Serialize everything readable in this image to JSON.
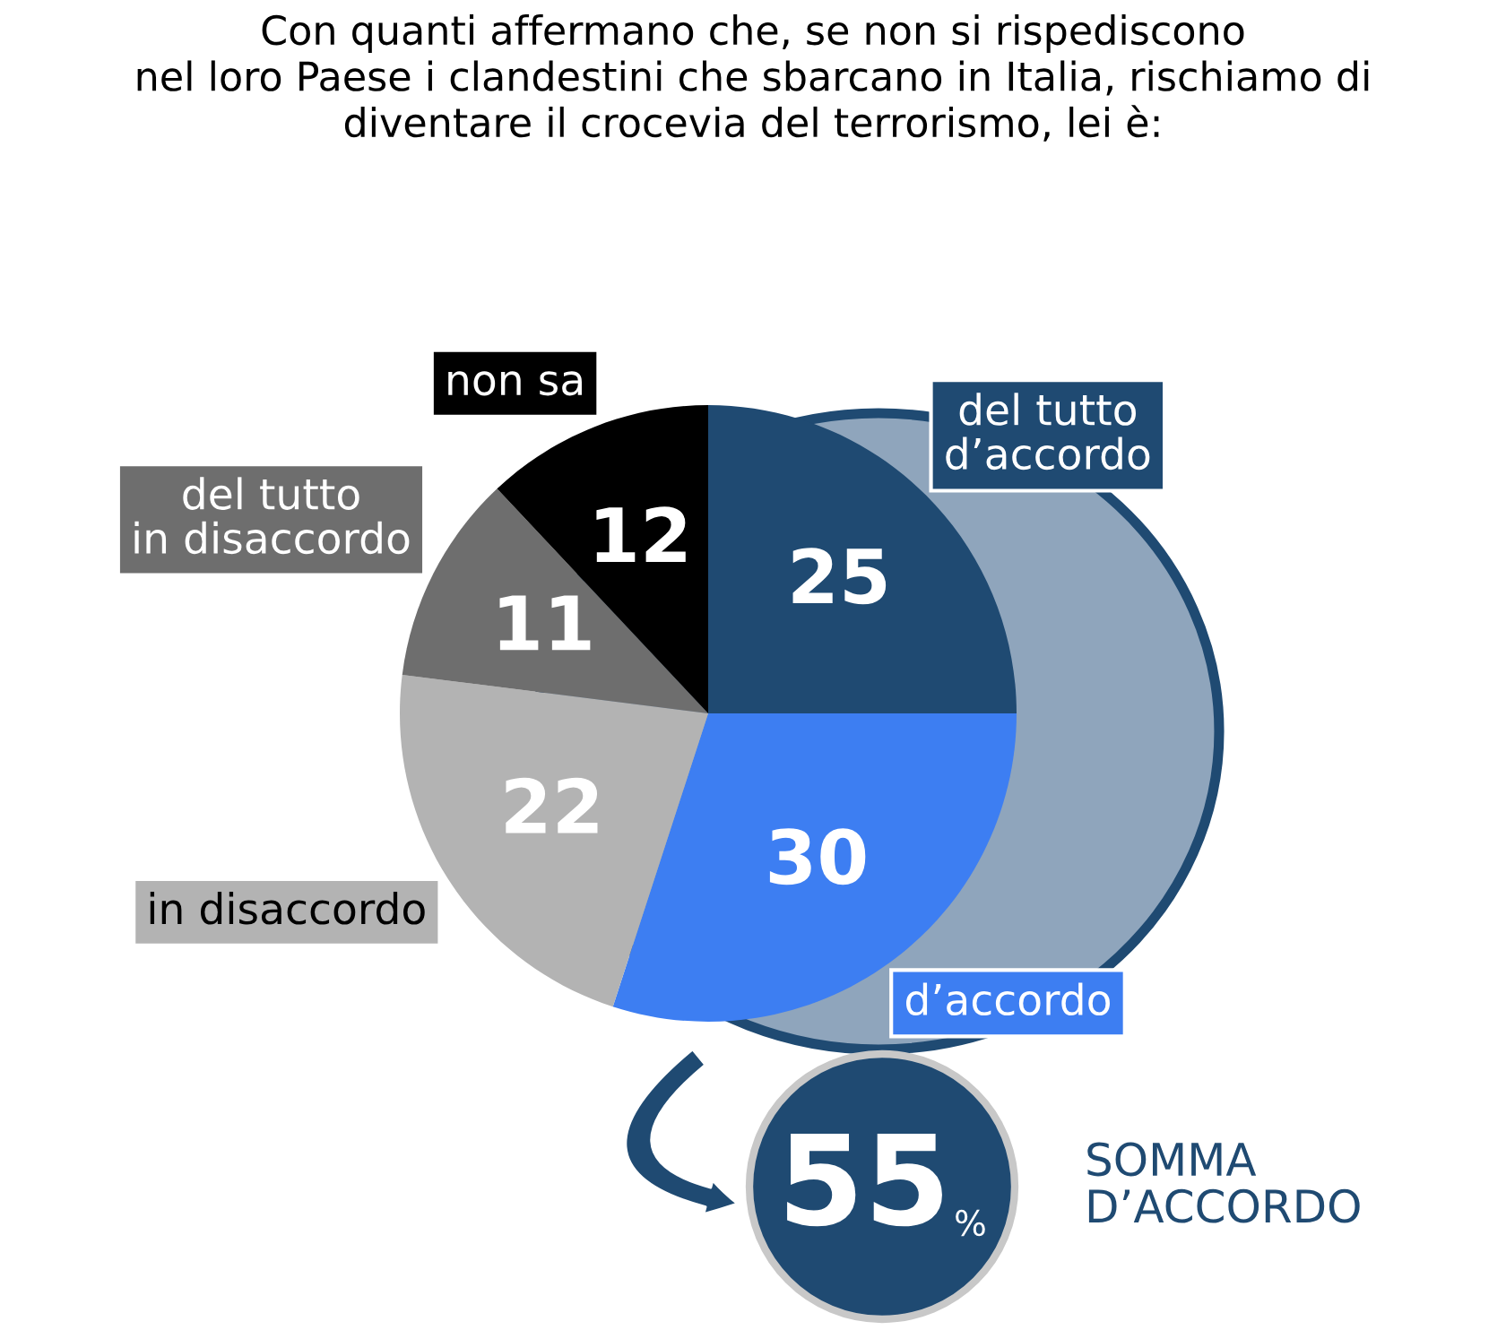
{
  "chart_data": {
    "type": "pie",
    "title": "Con quanti affermano che, se non si rispediscono\nnel loro Paese i clandestini che sbarcano in Italia, rischiamo di\ndiventare il crocevia del terrorismo, lei è:",
    "categories": [
      "del tutto\nd’accordo",
      "d’accordo",
      "in disaccordo",
      "del tutto\nin disaccordo",
      "non sa"
    ],
    "values": [
      25,
      30,
      22,
      11,
      12
    ],
    "colors": [
      "#1f4a72",
      "#3d7ef2",
      "#b3b3b3",
      "#6e6e6e",
      "#000000"
    ],
    "data_labels": true,
    "annotations": [
      "55",
      "%",
      "SOMMA\nD’ACCORDO"
    ]
  }
}
